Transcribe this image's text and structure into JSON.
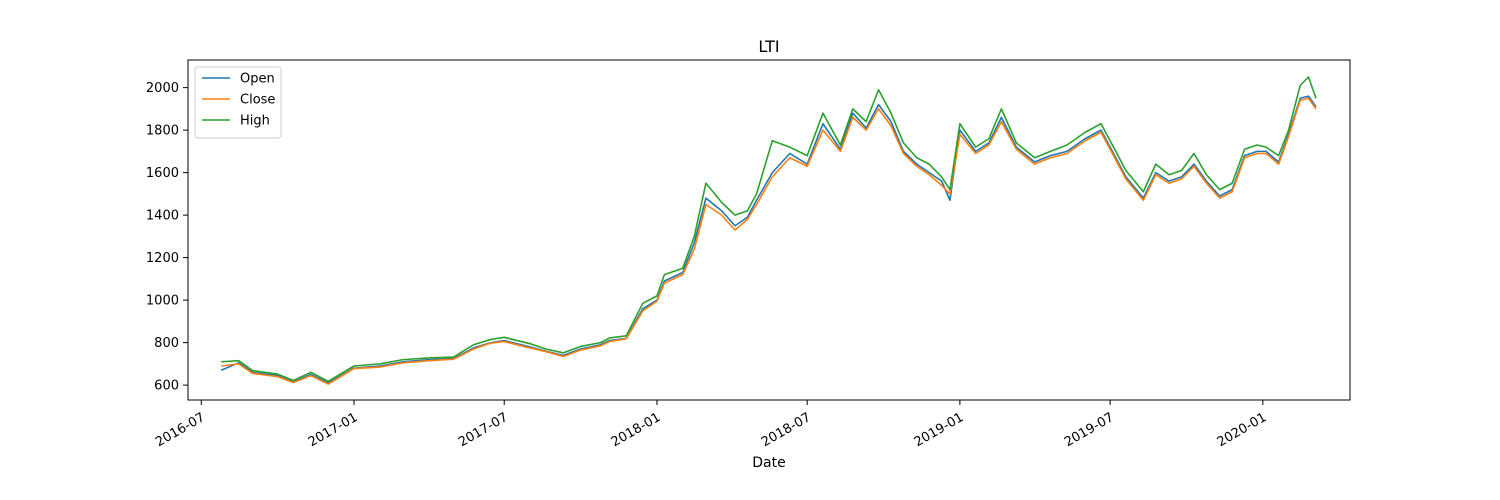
{
  "chart_data": {
    "type": "line",
    "title": "LTI",
    "xlabel": "Date",
    "ylabel": "",
    "x_ticks": [
      "2016-07",
      "2017-01",
      "2017-07",
      "2018-01",
      "2018-07",
      "2019-01",
      "2019-07",
      "2020-01"
    ],
    "y_ticks": [
      600,
      800,
      1000,
      1200,
      1400,
      1600,
      1800,
      2000
    ],
    "xlim": [
      "2016-06-15",
      "2020-04-15"
    ],
    "ylim": [
      530,
      2130
    ],
    "legend_position": "top-left",
    "grid": false,
    "x": [
      "2016-07-25",
      "2016-08-15",
      "2016-09-01",
      "2016-10-01",
      "2016-10-20",
      "2016-11-10",
      "2016-12-01",
      "2017-01-01",
      "2017-02-01",
      "2017-03-01",
      "2017-04-01",
      "2017-05-01",
      "2017-05-25",
      "2017-06-15",
      "2017-07-01",
      "2017-08-01",
      "2017-08-20",
      "2017-09-10",
      "2017-10-01",
      "2017-10-25",
      "2017-11-05",
      "2017-11-25",
      "2017-12-15",
      "2018-01-01",
      "2018-01-10",
      "2018-02-01",
      "2018-02-15",
      "2018-03-01",
      "2018-03-20",
      "2018-04-05",
      "2018-04-20",
      "2018-05-01",
      "2018-05-20",
      "2018-06-10",
      "2018-07-01",
      "2018-07-20",
      "2018-08-10",
      "2018-08-25",
      "2018-09-10",
      "2018-09-25",
      "2018-10-10",
      "2018-10-25",
      "2018-11-10",
      "2018-11-25",
      "2018-12-10",
      "2018-12-20",
      "2019-01-01",
      "2019-01-20",
      "2019-02-05",
      "2019-02-20",
      "2019-03-10",
      "2019-04-01",
      "2019-04-20",
      "2019-05-10",
      "2019-06-01",
      "2019-06-20",
      "2019-07-01",
      "2019-07-20",
      "2019-08-10",
      "2019-08-25",
      "2019-09-10",
      "2019-09-25",
      "2019-10-10",
      "2019-10-25",
      "2019-11-10",
      "2019-11-25",
      "2019-12-10",
      "2019-12-25",
      "2020-01-05",
      "2020-01-20",
      "2020-02-01",
      "2020-02-15",
      "2020-02-25",
      "2020-03-05"
    ],
    "series": [
      {
        "name": "Open",
        "color": "#1f77b4",
        "values": [
          670,
          705,
          660,
          645,
          615,
          650,
          610,
          680,
          690,
          710,
          720,
          725,
          775,
          800,
          810,
          780,
          760,
          740,
          770,
          790,
          810,
          820,
          960,
          1000,
          1090,
          1130,
          1270,
          1480,
          1420,
          1350,
          1390,
          1470,
          1600,
          1690,
          1640,
          1830,
          1710,
          1880,
          1810,
          1920,
          1840,
          1700,
          1640,
          1600,
          1560,
          1470,
          1800,
          1700,
          1740,
          1860,
          1720,
          1650,
          1680,
          1700,
          1760,
          1800,
          1720,
          1580,
          1480,
          1600,
          1560,
          1580,
          1640,
          1560,
          1490,
          1520,
          1680,
          1700,
          1700,
          1650,
          1780,
          1950,
          1960,
          1910
        ]
      },
      {
        "name": "Close",
        "color": "#ff7f0e",
        "values": [
          690,
          700,
          655,
          640,
          612,
          645,
          605,
          678,
          685,
          705,
          715,
          722,
          770,
          798,
          805,
          775,
          758,
          735,
          765,
          785,
          805,
          818,
          950,
          995,
          1080,
          1120,
          1240,
          1450,
          1400,
          1330,
          1380,
          1450,
          1580,
          1670,
          1630,
          1800,
          1700,
          1860,
          1800,
          1900,
          1820,
          1690,
          1630,
          1590,
          1540,
          1500,
          1780,
          1690,
          1730,
          1840,
          1710,
          1640,
          1670,
          1690,
          1750,
          1790,
          1710,
          1570,
          1470,
          1590,
          1550,
          1570,
          1630,
          1550,
          1480,
          1510,
          1670,
          1690,
          1690,
          1640,
          1770,
          1940,
          1950,
          1900
        ]
      },
      {
        "name": "High",
        "color": "#2ca02c",
        "values": [
          710,
          715,
          668,
          652,
          622,
          660,
          618,
          690,
          700,
          720,
          728,
          732,
          790,
          815,
          825,
          795,
          770,
          752,
          782,
          800,
          822,
          832,
          985,
          1020,
          1120,
          1150,
          1300,
          1550,
          1460,
          1400,
          1420,
          1500,
          1750,
          1720,
          1680,
          1880,
          1730,
          1900,
          1840,
          1990,
          1880,
          1740,
          1670,
          1640,
          1580,
          1520,
          1830,
          1720,
          1760,
          1900,
          1740,
          1670,
          1700,
          1730,
          1790,
          1830,
          1750,
          1610,
          1510,
          1640,
          1590,
          1610,
          1690,
          1590,
          1520,
          1550,
          1710,
          1730,
          1720,
          1680,
          1800,
          2010,
          2050,
          1950
        ]
      }
    ]
  }
}
